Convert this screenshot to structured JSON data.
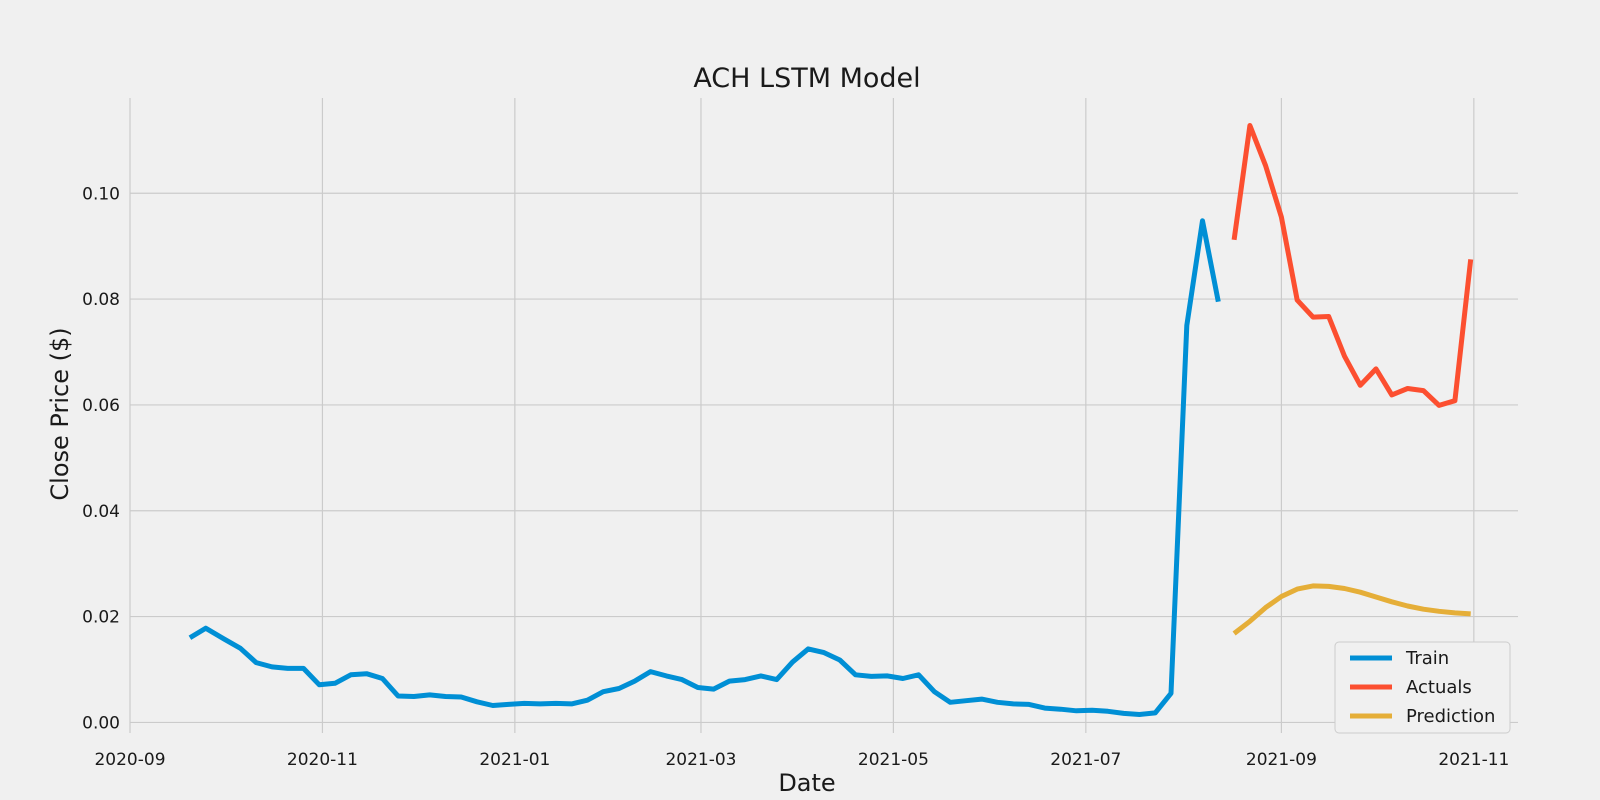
{
  "chart_data": {
    "type": "line",
    "title": "ACH LSTM Model",
    "xlabel": "Date",
    "ylabel": "Close Price ($)",
    "xlim": [
      "2020-09-01",
      "2021-11-15"
    ],
    "ylim": [
      -0.002,
      0.118
    ],
    "x_ticks": [
      "2020-09",
      "2020-11",
      "2021-01",
      "2021-03",
      "2021-05",
      "2021-07",
      "2021-09",
      "2021-11"
    ],
    "y_ticks": [
      "0.00",
      "0.02",
      "0.04",
      "0.06",
      "0.08",
      "0.10"
    ],
    "grid": true,
    "legend_position": "lower-right",
    "series": [
      {
        "name": "Train",
        "color": "#008fd5",
        "points": [
          [
            "2020-09-20",
            0.016
          ],
          [
            "2020-09-25",
            0.0178
          ],
          [
            "2020-10-01",
            0.0157
          ],
          [
            "2020-10-06",
            0.014
          ],
          [
            "2020-10-11",
            0.0113
          ],
          [
            "2020-10-16",
            0.0105
          ],
          [
            "2020-10-21",
            0.0102
          ],
          [
            "2020-10-26",
            0.0102
          ],
          [
            "2020-10-31",
            0.0071
          ],
          [
            "2020-11-05",
            0.0074
          ],
          [
            "2020-11-10",
            0.009
          ],
          [
            "2020-11-15",
            0.0092
          ],
          [
            "2020-11-20",
            0.0083
          ],
          [
            "2020-11-25",
            0.005
          ],
          [
            "2020-11-30",
            0.0049
          ],
          [
            "2020-12-05",
            0.0052
          ],
          [
            "2020-12-10",
            0.0049
          ],
          [
            "2020-12-15",
            0.0048
          ],
          [
            "2020-12-20",
            0.0039
          ],
          [
            "2020-12-25",
            0.0032
          ],
          [
            "2020-12-30",
            0.0034
          ],
          [
            "2021-01-04",
            0.0036
          ],
          [
            "2021-01-09",
            0.0035
          ],
          [
            "2021-01-14",
            0.0036
          ],
          [
            "2021-01-19",
            0.0035
          ],
          [
            "2021-01-24",
            0.0042
          ],
          [
            "2021-01-29",
            0.0058
          ],
          [
            "2021-02-03",
            0.0064
          ],
          [
            "2021-02-08",
            0.0078
          ],
          [
            "2021-02-13",
            0.0096
          ],
          [
            "2021-02-18",
            0.0088
          ],
          [
            "2021-02-23",
            0.0081
          ],
          [
            "2021-02-28",
            0.0066
          ],
          [
            "2021-03-05",
            0.0063
          ],
          [
            "2021-03-10",
            0.0078
          ],
          [
            "2021-03-15",
            0.0081
          ],
          [
            "2021-03-20",
            0.0088
          ],
          [
            "2021-03-25",
            0.0081
          ],
          [
            "2021-03-30",
            0.0114
          ],
          [
            "2021-04-04",
            0.0139
          ],
          [
            "2021-04-09",
            0.0132
          ],
          [
            "2021-04-14",
            0.0118
          ],
          [
            "2021-04-19",
            0.009
          ],
          [
            "2021-04-24",
            0.0087
          ],
          [
            "2021-04-29",
            0.0088
          ],
          [
            "2021-05-04",
            0.0083
          ],
          [
            "2021-05-09",
            0.009
          ],
          [
            "2021-05-14",
            0.0058
          ],
          [
            "2021-05-19",
            0.0038
          ],
          [
            "2021-05-24",
            0.0041
          ],
          [
            "2021-05-29",
            0.0044
          ],
          [
            "2021-06-03",
            0.0038
          ],
          [
            "2021-06-08",
            0.0035
          ],
          [
            "2021-06-13",
            0.0034
          ],
          [
            "2021-06-18",
            0.0027
          ],
          [
            "2021-06-23",
            0.0025
          ],
          [
            "2021-06-28",
            0.0022
          ],
          [
            "2021-07-03",
            0.0023
          ],
          [
            "2021-07-08",
            0.0021
          ],
          [
            "2021-07-13",
            0.0017
          ],
          [
            "2021-07-18",
            0.0015
          ],
          [
            "2021-07-23",
            0.0018
          ],
          [
            "2021-07-28",
            0.0055
          ],
          [
            "2021-08-02",
            0.075
          ],
          [
            "2021-08-07",
            0.0948
          ],
          [
            "2021-08-12",
            0.0795
          ]
        ]
      },
      {
        "name": "Actuals",
        "color": "#fc4f30",
        "points": [
          [
            "2021-08-17",
            0.0912
          ],
          [
            "2021-08-22",
            0.1128
          ],
          [
            "2021-08-27",
            0.1052
          ],
          [
            "2021-09-01",
            0.0955
          ],
          [
            "2021-09-06",
            0.0798
          ],
          [
            "2021-09-11",
            0.0766
          ],
          [
            "2021-09-16",
            0.0767
          ],
          [
            "2021-09-21",
            0.0692
          ],
          [
            "2021-09-26",
            0.0637
          ],
          [
            "2021-10-01",
            0.0668
          ],
          [
            "2021-10-06",
            0.0619
          ],
          [
            "2021-10-11",
            0.0631
          ],
          [
            "2021-10-16",
            0.0627
          ],
          [
            "2021-10-21",
            0.0599
          ],
          [
            "2021-10-26",
            0.0608
          ],
          [
            "2021-10-31",
            0.0875
          ]
        ]
      },
      {
        "name": "Prediction",
        "color": "#e5ae38",
        "points": [
          [
            "2021-08-17",
            0.0168
          ],
          [
            "2021-08-22",
            0.0191
          ],
          [
            "2021-08-27",
            0.0217
          ],
          [
            "2021-09-01",
            0.0238
          ],
          [
            "2021-09-06",
            0.0252
          ],
          [
            "2021-09-11",
            0.0258
          ],
          [
            "2021-09-16",
            0.0257
          ],
          [
            "2021-09-21",
            0.0253
          ],
          [
            "2021-09-26",
            0.0246
          ],
          [
            "2021-10-01",
            0.0237
          ],
          [
            "2021-10-06",
            0.0228
          ],
          [
            "2021-10-11",
            0.022
          ],
          [
            "2021-10-16",
            0.0214
          ],
          [
            "2021-10-21",
            0.021
          ],
          [
            "2021-10-26",
            0.0207
          ],
          [
            "2021-10-31",
            0.0205
          ]
        ]
      }
    ]
  }
}
